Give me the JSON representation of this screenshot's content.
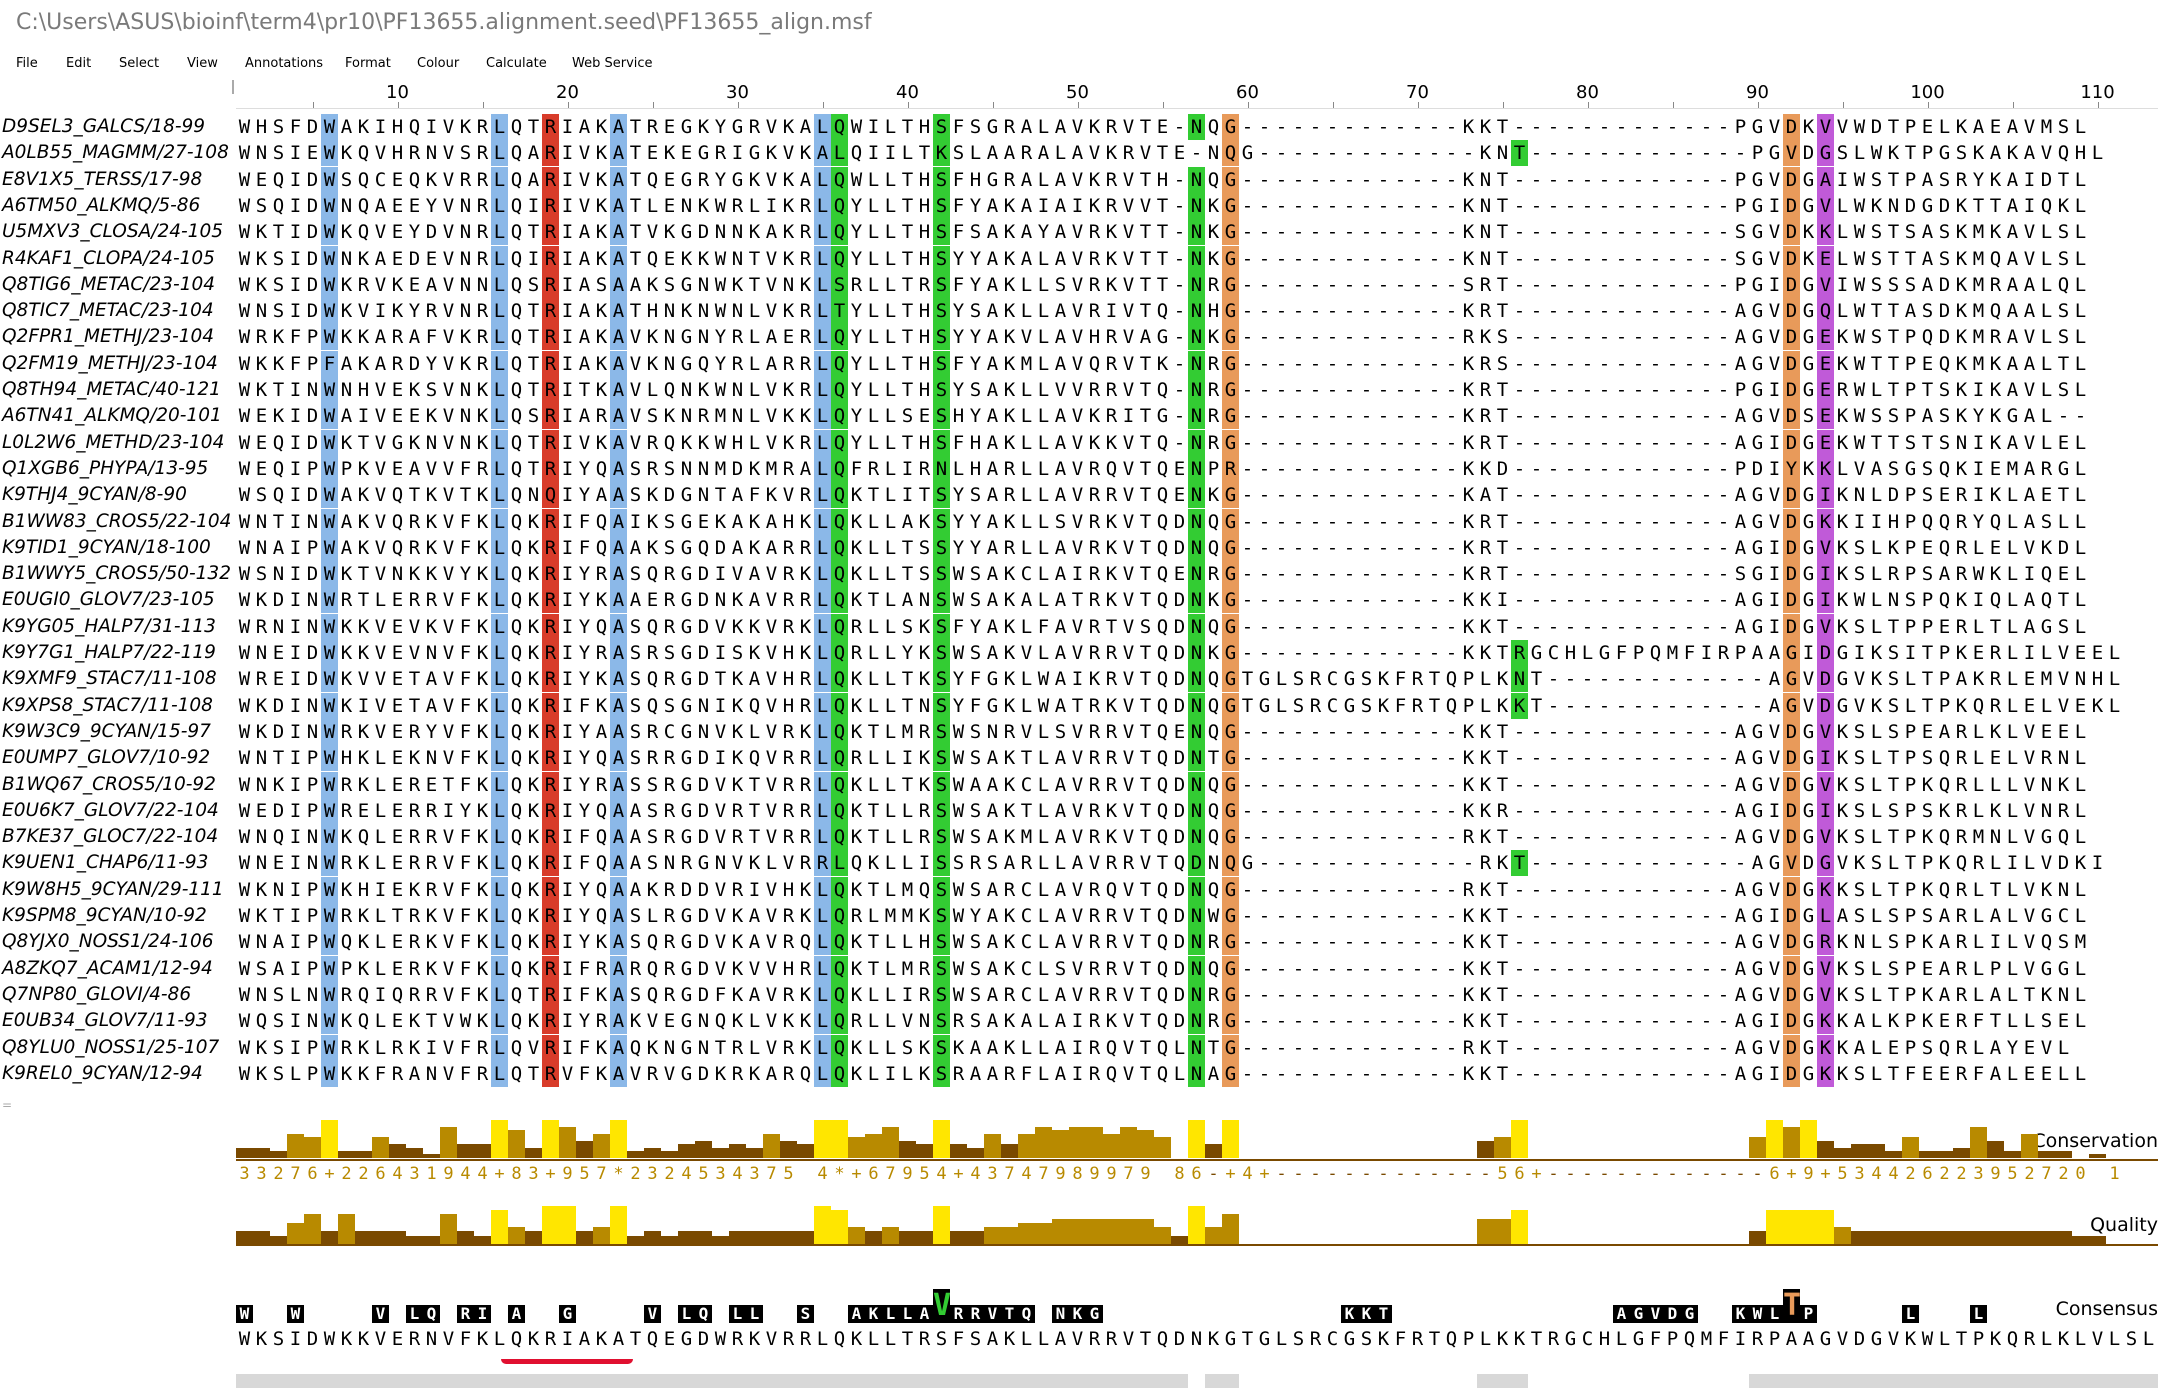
{
  "window": {
    "title": "C:\\Users\\ASUS\\bioinf\\term4\\pr10\\PF13655.alignment.seed\\PF13655_align.msf"
  },
  "menu": [
    "File",
    "Edit",
    "Select",
    "View",
    "Annotations",
    "Format",
    "Colour",
    "Calculate",
    "Web Service"
  ],
  "ruler": {
    "labels": [
      "10",
      "20",
      "30",
      "40",
      "50",
      "60",
      "70",
      "80",
      "90",
      "100",
      "110"
    ]
  },
  "sequences": [
    {
      "id": "D9SEL3_GALCS/18-99",
      "seq": "WHSFDWAKIHQIVKRLQTRIAKATREGKYGRVKALQWILTHSFSGRALAVKRVTE-NQG-------------KKT-------------PGVDKVVWDTPELKAEAVMSL"
    },
    {
      "id": "A0LB55_MAGMM/27-108",
      "seq": "WNSIEWKQVHRNVSRLQARIVKATEKEGRIGKVKALQIILTKSLAARALAVKRVTE-NQG-------------KNT-------------PGVDGSLWKTPGSKAKAVQHL"
    },
    {
      "id": "E8V1X5_TERSS/17-98",
      "seq": "WEQIDWSQCEQKVRRLQARIVKATQEGRYGKVKALQWLLTHSFHGRALAVKRVTH-NQG-------------KNT-------------PGVDGAIWSTPASRYKAIDTL"
    },
    {
      "id": "A6TM50_ALKMQ/5-86",
      "seq": "WSQIDWNQAEEYVNRLQIRIVKATLENKWRLIKRLQYLLTHSFYAKAIAIKRVVT-NKG-------------KNT-------------PGIDGVLWKNDGDKTTAIQKL"
    },
    {
      "id": "U5MXV3_CLOSA/24-105",
      "seq": "WKTIDWKQVEYDVNRLQTRIAKATVKGDNNKAKRLQYLLTHSFSAKAYAVRKVTT-NKG-------------KNT-------------SGVDKKLWSTSASKMKAVLSL"
    },
    {
      "id": "R4KAF1_CLOPA/24-105",
      "seq": "WKSIDWNKAEDEVNRLQIRIAKATQEKKWNTVKRLQYLLTHSYYAKALAVRKVTT-NKG-------------KNT-------------SGVDKELWSTTASKMQAVLSL"
    },
    {
      "id": "Q8TIG6_METAC/23-104",
      "seq": "WKSIDWKRVKEAVNNLQSRIASAAKSGNWKTVNKLSRLLTRSFYAKLLSVRKVTT-NRG-------------SRT-------------PGIDGVIWSSSADKMRAALQL"
    },
    {
      "id": "Q8TIC7_METAC/23-104",
      "seq": "WNSIDWKVIKYRVNRLQTRIAKATHNKNWNLVKRLTYLLTHSYSAKLLAVRIVTQ-NHG-------------KRT-------------AGVDGQLWTTASDKMQAALSL"
    },
    {
      "id": "Q2FPR1_METHJ/23-104",
      "seq": "WRKFPWKKARAFVKRLQTRIAKAVKNGNYRLAERLQYLLTHSYYAKVLAVHRVAG-NKG-------------RKS-------------AGVDGEKWSTPQDKMRAVLSL"
    },
    {
      "id": "Q2FM19_METHJ/23-104",
      "seq": "WKKFPFAKARDYVKRLQTRIAKAVKNGQYRLARRLQYLLTHSFYAKMLAVQRVTK-NRG-------------KRS-------------AGVDGEKWTTPEQKMKAALTL"
    },
    {
      "id": "Q8TH94_METAC/40-121",
      "seq": "WKTINWNHVEKSVNKLQTRITKAVLQNKWNLVKRLQYLLTHSYSAKLLVVRRVTQ-NRG-------------KRT-------------PGIDGERWLTPTSKIKAVLSL"
    },
    {
      "id": "A6TN41_ALKMQ/20-101",
      "seq": "WEKIDWAIVEEKVNKLQSRIARAVSKNRMNLVKKLQYLLSESHYAKLLAVKRITG-NRG-------------KRT-------------AGVDSEKWSSPASKYKGAL--"
    },
    {
      "id": "L0L2W6_METHD/23-104",
      "seq": "WEQIDWKTVGKNVNKLQTRIVKAVRQKKWHLVKRLQYLLTHSFHAKLLAVKKVTQ-NRG-------------KRT-------------AGIDGEKWTTSTSNIKAVLEL"
    },
    {
      "id": "Q1XGB6_PHYPA/13-95",
      "seq": "WEQIPWPKVEAVVFRLQTRIYQASRSNNMDKMRALQFRLIRNLHARLLAVRQVTQENPR-------------KKD-------------PDIYKKLVASGSQKIEMARGL"
    },
    {
      "id": "K9THJ4_9CYAN/8-90",
      "seq": "WSQIDWAKVQTKVTKLQNQIYAASKDGNTAFKVRLQKTLITSYSARLLAVRRVTQENKG-------------KAT-------------AGVDGIKNLDPSERIKLAETL"
    },
    {
      "id": "B1WW83_CROS5/22-104",
      "seq": "WNTINWAKVQRKVFKLQKRIFQAIKSGEKAKAHKLQKLLAKSYYAKLLSVRKVTQDNQG-------------KRT-------------AGVDGKKIIHPQQRYQLASLL"
    },
    {
      "id": "K9TID1_9CYAN/18-100",
      "seq": "WNAIPWAKVQRKVFKLQKRIFQAAKSGQDAKARRLQKLLTSSYYARLLAVRKVTQDNQG-------------KRT-------------AGIDGVKSLKPEQRLELVKDL"
    },
    {
      "id": "B1WWY5_CROS5/50-132",
      "seq": "WSNIDWKTVNKKVYKLQKRIYRASQRGDIVAVRKLQKLLTSSWSAKCLAIRKVTQENRG-------------KRT-------------SGIDGIKSLRPSARWKLIQEL"
    },
    {
      "id": "E0UGI0_GLOV7/23-105",
      "seq": "WKDINWRTLERRVFKLQKRIYKAAERGDNKAVRRLQKTLANSWSAKALATRKVTQDNKG-------------KKI-------------AGIDGIKWLNSPQKIQLAQTL"
    },
    {
      "id": "K9YG05_HALP7/31-113",
      "seq": "WRNINWKKVEVKVFKLQKRIYQASQRGDVKKVRKLQRLLSKSFYAKLFAVRTVSQDNQG-------------KKT-------------AGIDGVKSLTPPERLTLAGSL"
    },
    {
      "id": "K9Y7G1_HALP7/22-119",
      "seq": "WNEIDWKKVEVNVFKLQKRIYRASRSGDISKVHKLQRLLYKSWSAKVLAVRRVTQDNKG-------------KKTRGCHLGFPQMFIRPAAGIDGIKSITPKERLILVEEL"
    },
    {
      "id": "K9XMF9_STAC7/11-108",
      "seq": "WREIDWKVVETAVFKLQKRIYKASQRGDTKAVHRLQKLLTKSYFGKLWAIKRVTQDNQGTGLSRCGSKFRTQPLKNT-------------AGVDGVKSLTPAKRLEMVNHL"
    },
    {
      "id": "K9XPS8_STAC7/11-108",
      "seq": "WKDINWKIVETAVFKLQKRIFKASQSGNIKQVHRLQKLLTNSYFGKLWATRKVTQDNQGTGLSRCGSKFRTQPLKKT-------------AGVDGVKSLTPKQRLELVEKL"
    },
    {
      "id": "K9W3C9_9CYAN/15-97",
      "seq": "WKDINWRKVERYVFKLQKRIYAASRCGNVKLVRKLQKTLMRSWSNRVLSVRRVTQENQG-------------KKT-------------AGVDGVKSLSPEARLKLVEEL"
    },
    {
      "id": "E0UMP7_GLOV7/10-92",
      "seq": "WNTIPWHKLEKNVFKLQKRIYQASRRGDIKQVRRLQRLLIKSWSAKTLAVRRVTQDNTG-------------KKT-------------AGVDGIKSLTPSQRLELVRNL"
    },
    {
      "id": "B1WQ67_CROS5/10-92",
      "seq": "WNKIPWRKLERETFKLQKRIYRASSRGDVKTVRRLQKLLTKSWAAKCLAVRRVTQDNQG-------------KKT-------------AGVDGVKSLTPKQRLLLVNKL"
    },
    {
      "id": "E0U6K7_GLOV7/22-104",
      "seq": "WEDIPWRELERRIYKLQKRIYQAASRGDVRTVRRLQKTLLRSWSAKTLAVRKVTQDNQG-------------KKR-------------AGIDGIKSLSPSKRLKLVNRL"
    },
    {
      "id": "B7KE37_GLOC7/22-104",
      "seq": "WNQINWKQLERRVFKLQKRIFQAASRGDVRTVRRLQKTLLRSWSAKMLAVRKVTQDNQG-------------RKT-------------AGVDGVKSLTPKQRMNLVGQL"
    },
    {
      "id": "K9UEN1_CHAP6/11-93",
      "seq": "WNEINWRKLERRVFKLQKRIFQAASNRGNVKLVRRLQKLLISSRSARLLAVRRVTQDNQG-------------RKT-------------AGVDGVKSLTPKQRLILVDKI"
    },
    {
      "id": "K9W8H5_9CYAN/29-111",
      "seq": "WKNIPWKHIEKRVFKLQKRIYQAAKRDDVRIVHKLQKTLMQSWSARCLAVRQVTQDNQG-------------RKT-------------AGVDGKKSLTPKQRLTLVKNL"
    },
    {
      "id": "K9SPM8_9CYAN/10-92",
      "seq": "WKTIPWRKLTRKVFKLQKRIYQASLRGDVKAVRKLQRLMMKSWYAKCLAVRRVTQDNWG-------------KKT-------------AGIDGLASLSPSARLALVGCL"
    },
    {
      "id": "Q8YJX0_NOSS1/24-106",
      "seq": "WNAIPWQKLERKVFKLQKRIYKASQRGDVKAVRQLQKTLLHSWSAKCLAVRRVTQDNRG-------------KKT-------------AGVDGRKNLSPKARLILVQSM"
    },
    {
      "id": "A8ZKQ7_ACAM1/12-94",
      "seq": "WSAIPWPKLERKVFKLQKRIFRARQRGDVKVVHRLQKTLMRSWSAKCLSVRRVTQDNQG-------------KKT-------------AGVDGVKSLSPEARLPLVGGL"
    },
    {
      "id": "Q7NP80_GLOVI/4-86",
      "seq": "WNSLNWRQIQRRVFKLQTRIFKASQRGDFKAVRKLQKLLIRSWSARCLAVRRVTQDNRG-------------KKT-------------AGVDGVKSLTPKARLALTKNL"
    },
    {
      "id": "E0UB34_GLOV7/11-93",
      "seq": "WQSINWKQLEKTVWKLQKRIYRAKVEGNQKLVKKLQRLLVNSRSAKALAIRKVTQDNRG-------------KKT-------------AGIDGKKALKPKERFTLLSEL"
    },
    {
      "id": "Q8YLU0_NOSS1/25-107",
      "seq": "WKSIPWRKLRKIVFRLQVRIFKAQKNGNTRLVRKLQKLLSKSKAAKLLAIRQVTQLNTG-------------RKT-------------AGVDGKKALEPSQRLAYEVL"
    },
    {
      "id": "K9REL0_9CYAN/12-94",
      "seq": "WKSLPWKKFRANVFRLQTRVFKAVRVGDKRKARQLQKLILKSRAARFLAIRQVTQLNAG-------------KKT-------------AGIDGKKSLTFEERFALEELL"
    }
  ],
  "colors": {
    "W": "#8bb8e8",
    "R_red": "#d83c2a",
    "green": "#33cc33",
    "orange": "#e89a5a",
    "magenta": "#c05ad8",
    "cons_bar_dark": "#7a4a00",
    "cons_bar_mid": "#b88a00",
    "cons_bar_light": "#ffe600"
  },
  "annotations": {
    "conservation_label": "Conservation",
    "quality_label": "Quality",
    "consensus_label": "Consensus",
    "conservation_string": "33276+226431944+83+957*2324534375 4*+67954+43747989979 86-+4+-------------56+-------------6+9+534426223952720 1",
    "conservation_values": [
      3,
      3,
      2,
      7,
      6,
      11,
      2,
      2,
      6,
      4,
      3,
      1,
      9,
      4,
      4,
      11,
      8,
      3,
      11,
      9,
      5,
      7,
      11,
      2,
      3,
      2,
      4,
      5,
      3,
      4,
      3,
      7,
      5,
      4,
      11,
      11,
      6,
      7,
      9,
      5,
      4,
      11,
      4,
      3,
      7,
      4,
      7,
      9,
      8,
      9,
      9,
      7,
      9,
      8,
      6,
      0,
      11,
      4,
      11,
      0,
      0,
      0,
      0,
      0,
      0,
      0,
      0,
      0,
      0,
      0,
      0,
      0,
      0,
      5,
      6,
      11,
      0,
      0,
      0,
      0,
      0,
      0,
      0,
      0,
      0,
      0,
      0,
      0,
      0,
      6,
      11,
      9,
      11,
      5,
      3,
      4,
      4,
      2,
      6,
      2,
      2,
      3,
      9,
      5,
      2,
      7,
      2,
      2,
      0,
      1
    ],
    "quality_values": [
      3,
      3,
      2,
      5,
      7,
      3,
      7,
      3,
      3,
      3,
      2,
      2,
      7,
      3,
      2,
      8,
      4,
      3,
      9,
      9,
      3,
      4,
      9,
      2,
      3,
      2,
      3,
      3,
      2,
      3,
      3,
      3,
      3,
      3,
      9,
      8,
      4,
      3,
      4,
      3,
      3,
      9,
      3,
      3,
      4,
      4,
      5,
      5,
      6,
      6,
      6,
      6,
      6,
      6,
      4,
      2,
      9,
      4,
      7,
      0,
      0,
      0,
      0,
      0,
      0,
      0,
      0,
      0,
      0,
      0,
      0,
      0,
      0,
      6,
      6,
      8,
      0,
      0,
      0,
      0,
      0,
      0,
      0,
      0,
      0,
      0,
      0,
      0,
      0,
      3,
      8,
      8,
      8,
      8,
      4,
      3,
      3,
      3,
      3,
      3,
      3,
      3,
      3,
      3,
      3,
      3,
      3,
      3,
      2,
      2
    ],
    "consensus_logo": "W  W    V LQ RI A  G    V LQ LL  S  AKLLAVRRVTQ NKG              KKT             AGVDG  KWLTP     L   L",
    "consensus_seq": "WKSIDWKKVERNVFKLQKRIAKATQEGDWRKVRRLQKLLTRSFSAKLLAVRRVTQDNKGTGLSRCGSKFRTQPLKKTRGCHLGFPQMFIRPAAGVDGVKWLTPKQRLKLVLSL"
  }
}
